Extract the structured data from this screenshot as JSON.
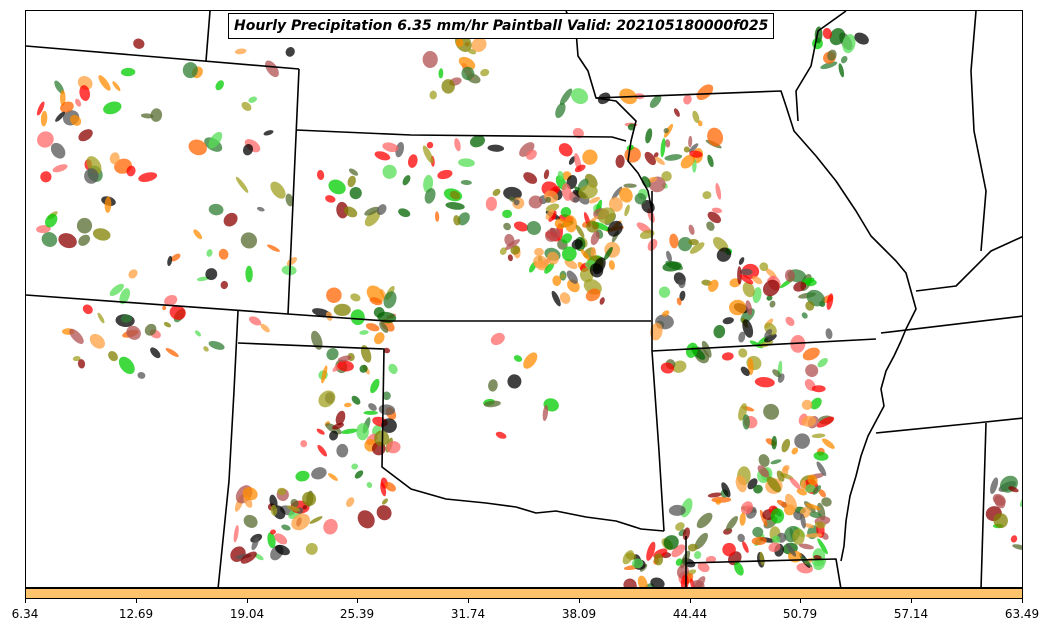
{
  "title": "Hourly Precipitation 6.35 mm/hr Paintball Valid: 202105180000f025",
  "colorbar": {
    "color": "#ffc36b",
    "ticks": [
      "6.34",
      "12.69",
      "19.04",
      "25.39",
      "31.74",
      "38.09",
      "44.44",
      "50.79",
      "57.14",
      "63.49"
    ]
  },
  "map": {
    "background": "#ffffff",
    "boundary_color": "#000000",
    "member_colors": [
      "#ff0000",
      "#ff6a6a",
      "#8b0000",
      "#b05050",
      "#ff8c00",
      "#ffa040",
      "#ff6600",
      "#00cc00",
      "#55dd55",
      "#006400",
      "#2e7d32",
      "#808000",
      "#a0a020",
      "#556b2f",
      "#000000",
      "#555555"
    ]
  }
}
